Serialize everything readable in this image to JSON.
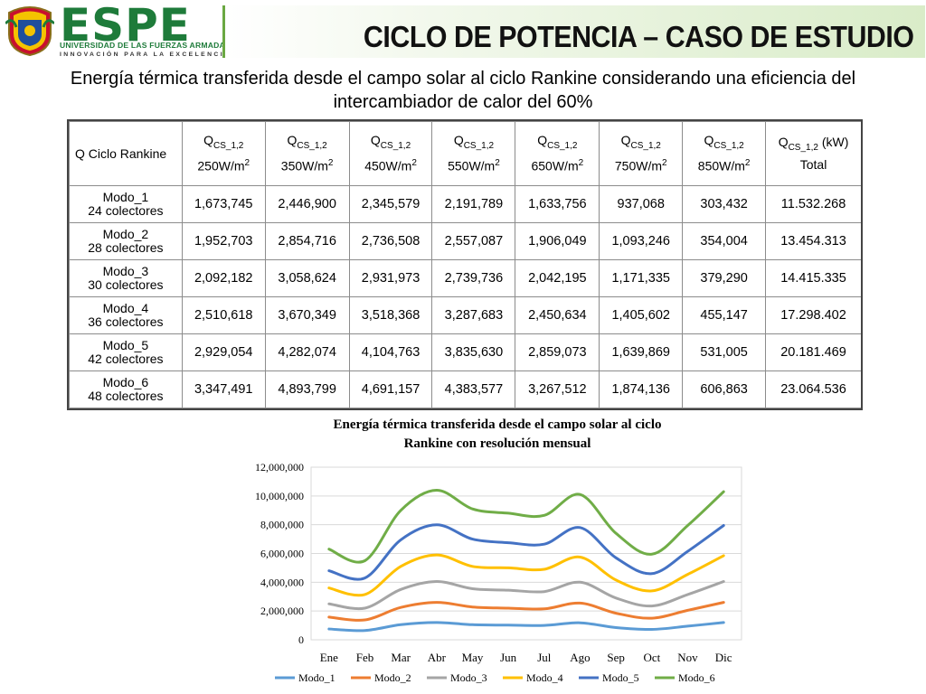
{
  "brand": {
    "name": "ESPE",
    "university": "UNIVERSIDAD DE LAS FUERZAS ARMADAS",
    "motto": "INNOVACIÓN PARA LA EXCELENCIA"
  },
  "header": {
    "title": "CICLO DE POTENCIA – CASO DE ESTUDIO"
  },
  "subtitle": {
    "line1": "Energía térmica transferida desde el campo solar al ciclo Rankine considerando una eficiencia del",
    "line2": "intercambiador de calor del 60%"
  },
  "table": {
    "corner": "Q Ciclo Rankine",
    "columns": [
      {
        "q": "Q",
        "sub": "CS_1,2",
        "unit": "250W/m",
        "sup": "2"
      },
      {
        "q": "Q",
        "sub": "CS_1,2",
        "unit": "350W/m",
        "sup": "2"
      },
      {
        "q": "Q",
        "sub": "CS_1,2",
        "unit": "450W/m",
        "sup": "2"
      },
      {
        "q": "Q",
        "sub": "CS_1,2",
        "unit": "550W/m",
        "sup": "2"
      },
      {
        "q": "Q",
        "sub": "CS_1,2",
        "unit": "650W/m",
        "sup": "2"
      },
      {
        "q": "Q",
        "sub": "CS_1,2",
        "unit": "750W/m",
        "sup": "2"
      },
      {
        "q": "Q",
        "sub": "CS_1,2",
        "unit": "850W/m",
        "sup": "2"
      }
    ],
    "total_header": {
      "q": "Q",
      "sub": "CS_1,2",
      "suffix": " (kW)",
      "line2": "Total"
    },
    "rows": [
      {
        "mode": "Modo_1",
        "collectors": "24 colectores",
        "values": [
          "1,673,745",
          "2,446,900",
          "2,345,579",
          "2,191,789",
          "1,633,756",
          "937,068",
          "303,432"
        ],
        "total": "11.532.268"
      },
      {
        "mode": "Modo_2",
        "collectors": "28 colectores",
        "values": [
          "1,952,703",
          "2,854,716",
          "2,736,508",
          "2,557,087",
          "1,906,049",
          "1,093,246",
          "354,004"
        ],
        "total": "13.454.313"
      },
      {
        "mode": "Modo_3",
        "collectors": "30 colectores",
        "values": [
          "2,092,182",
          "3,058,624",
          "2,931,973",
          "2,739,736",
          "2,042,195",
          "1,171,335",
          "379,290"
        ],
        "total": "14.415.335"
      },
      {
        "mode": "Modo_4",
        "collectors": "36 colectores",
        "values": [
          "2,510,618",
          "3,670,349",
          "3,518,368",
          "3,287,683",
          "2,450,634",
          "1,405,602",
          "455,147"
        ],
        "total": "17.298.402"
      },
      {
        "mode": "Modo_5",
        "collectors": "42 colectores",
        "values": [
          "2,929,054",
          "4,282,074",
          "4,104,763",
          "3,835,630",
          "2,859,073",
          "1,639,869",
          "531,005"
        ],
        "total": "20.181.469"
      },
      {
        "mode": "Modo_6",
        "collectors": "48 colectores",
        "values": [
          "3,347,491",
          "4,893,799",
          "4,691,157",
          "4,383,577",
          "3,267,512",
          "1,874,136",
          "606,863"
        ],
        "total": "23.064.536"
      }
    ]
  },
  "chart_data": {
    "type": "line",
    "title": "Energía térmica transferida desde el campo solar al ciclo Rankine con resolución mensual",
    "title_line1": "Energía térmica transferida desde el campo solar al ciclo",
    "title_line2": "Rankine con resolución mensual",
    "categories": [
      "Ene",
      "Feb",
      "Mar",
      "Abr",
      "May",
      "Jun",
      "Jul",
      "Ago",
      "Sep",
      "Oct",
      "Nov",
      "Dic"
    ],
    "ylim": [
      0,
      12000000
    ],
    "yticks": [
      0,
      2000000,
      4000000,
      6000000,
      8000000,
      10000000,
      12000000
    ],
    "ytick_labels": [
      "0",
      "2,000,000",
      "4,000,000",
      "6,000,000",
      "8,000,000",
      "10,000,000",
      "12,000,000"
    ],
    "grid": true,
    "legend": "bottom",
    "series": [
      {
        "name": "Modo_1",
        "color": "#5b9bd5",
        "values": [
          750000,
          650000,
          1050000,
          1200000,
          1050000,
          1020000,
          1000000,
          1180000,
          850000,
          720000,
          950000,
          1200000
        ]
      },
      {
        "name": "Modo_2",
        "color": "#ed7d31",
        "values": [
          1580000,
          1380000,
          2250000,
          2600000,
          2280000,
          2200000,
          2150000,
          2550000,
          1850000,
          1500000,
          2050000,
          2600000
        ]
      },
      {
        "name": "Modo_3",
        "color": "#a5a5a5",
        "values": [
          2500000,
          2200000,
          3500000,
          4050000,
          3550000,
          3450000,
          3350000,
          4000000,
          2900000,
          2350000,
          3150000,
          4050000
        ]
      },
      {
        "name": "Modo_4",
        "color": "#ffc000",
        "values": [
          3600000,
          3150000,
          5100000,
          5900000,
          5100000,
          5000000,
          4900000,
          5750000,
          4150000,
          3400000,
          4550000,
          5850000
        ]
      },
      {
        "name": "Modo_5",
        "color": "#4472c4",
        "values": [
          4800000,
          4300000,
          6950000,
          8000000,
          7000000,
          6750000,
          6650000,
          7800000,
          5700000,
          4600000,
          6150000,
          7950000
        ]
      },
      {
        "name": "Modo_6",
        "color": "#70ad47",
        "values": [
          6300000,
          5500000,
          9000000,
          10400000,
          9100000,
          8800000,
          8650000,
          10100000,
          7400000,
          5950000,
          7950000,
          10300000
        ]
      }
    ]
  }
}
